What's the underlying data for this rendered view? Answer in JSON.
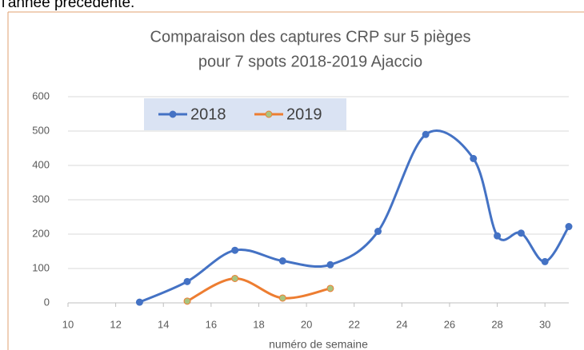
{
  "heading": "l'année précédente.",
  "chart_data": {
    "type": "line",
    "title": [
      "Comparaison des captures CRP sur 5 pièges",
      "pour 7 spots 2018-2019 Ajaccio"
    ],
    "x_label": "numéro de semaine",
    "xlim": [
      10,
      31
    ],
    "xticks": [
      10,
      12,
      14,
      16,
      18,
      20,
      22,
      24,
      26,
      28,
      30
    ],
    "ylim": [
      0,
      600
    ],
    "yticks": [
      0,
      100,
      200,
      300,
      400,
      500,
      600
    ],
    "grid": true,
    "smooth": true,
    "legend": "top-left",
    "series": [
      {
        "name": "2018",
        "color": "#4472c4",
        "marker_color": "#4472c4",
        "x": [
          13,
          15,
          17,
          19,
          21,
          23,
          25,
          27,
          28,
          29,
          30,
          31
        ],
        "values": [
          2,
          62,
          153,
          122,
          111,
          208,
          490,
          420,
          195,
          203,
          120,
          222
        ]
      },
      {
        "name": "2019",
        "color": "#ed7d31",
        "marker_color": "#a9c47f",
        "x": [
          15,
          17,
          19,
          21
        ],
        "values": [
          5,
          71,
          14,
          42
        ]
      }
    ]
  }
}
